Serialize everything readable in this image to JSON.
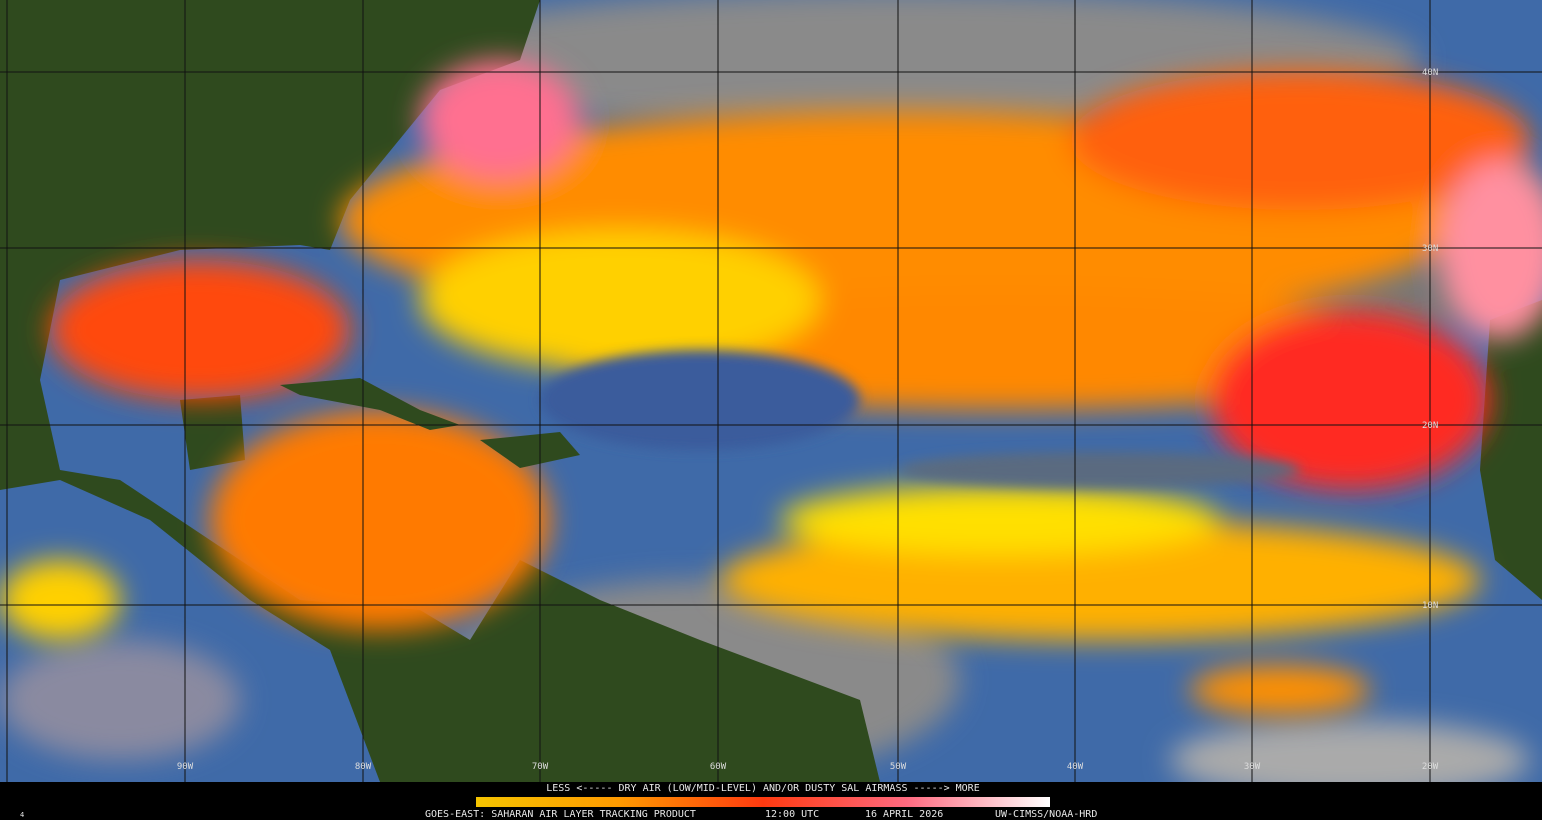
{
  "map": {
    "lat_labels": [
      "40N",
      "30N",
      "20N",
      "10N"
    ],
    "lon_labels": [
      "90W",
      "80W",
      "70W",
      "60W",
      "50W",
      "40W",
      "30W",
      "20W"
    ]
  },
  "legend": {
    "caption": "LESS <----- DRY AIR (LOW/MID-LEVEL) AND/OR DUSTY SAL AIRMASS -----> MORE"
  },
  "footer": {
    "product": "GOES-EAST: SAHARAN AIR LAYER TRACKING PRODUCT",
    "time": "12:00 UTC",
    "date": "16 APRIL 2026",
    "credit": "UW-CIMSS/NOAA-HRD",
    "frame": "4"
  }
}
